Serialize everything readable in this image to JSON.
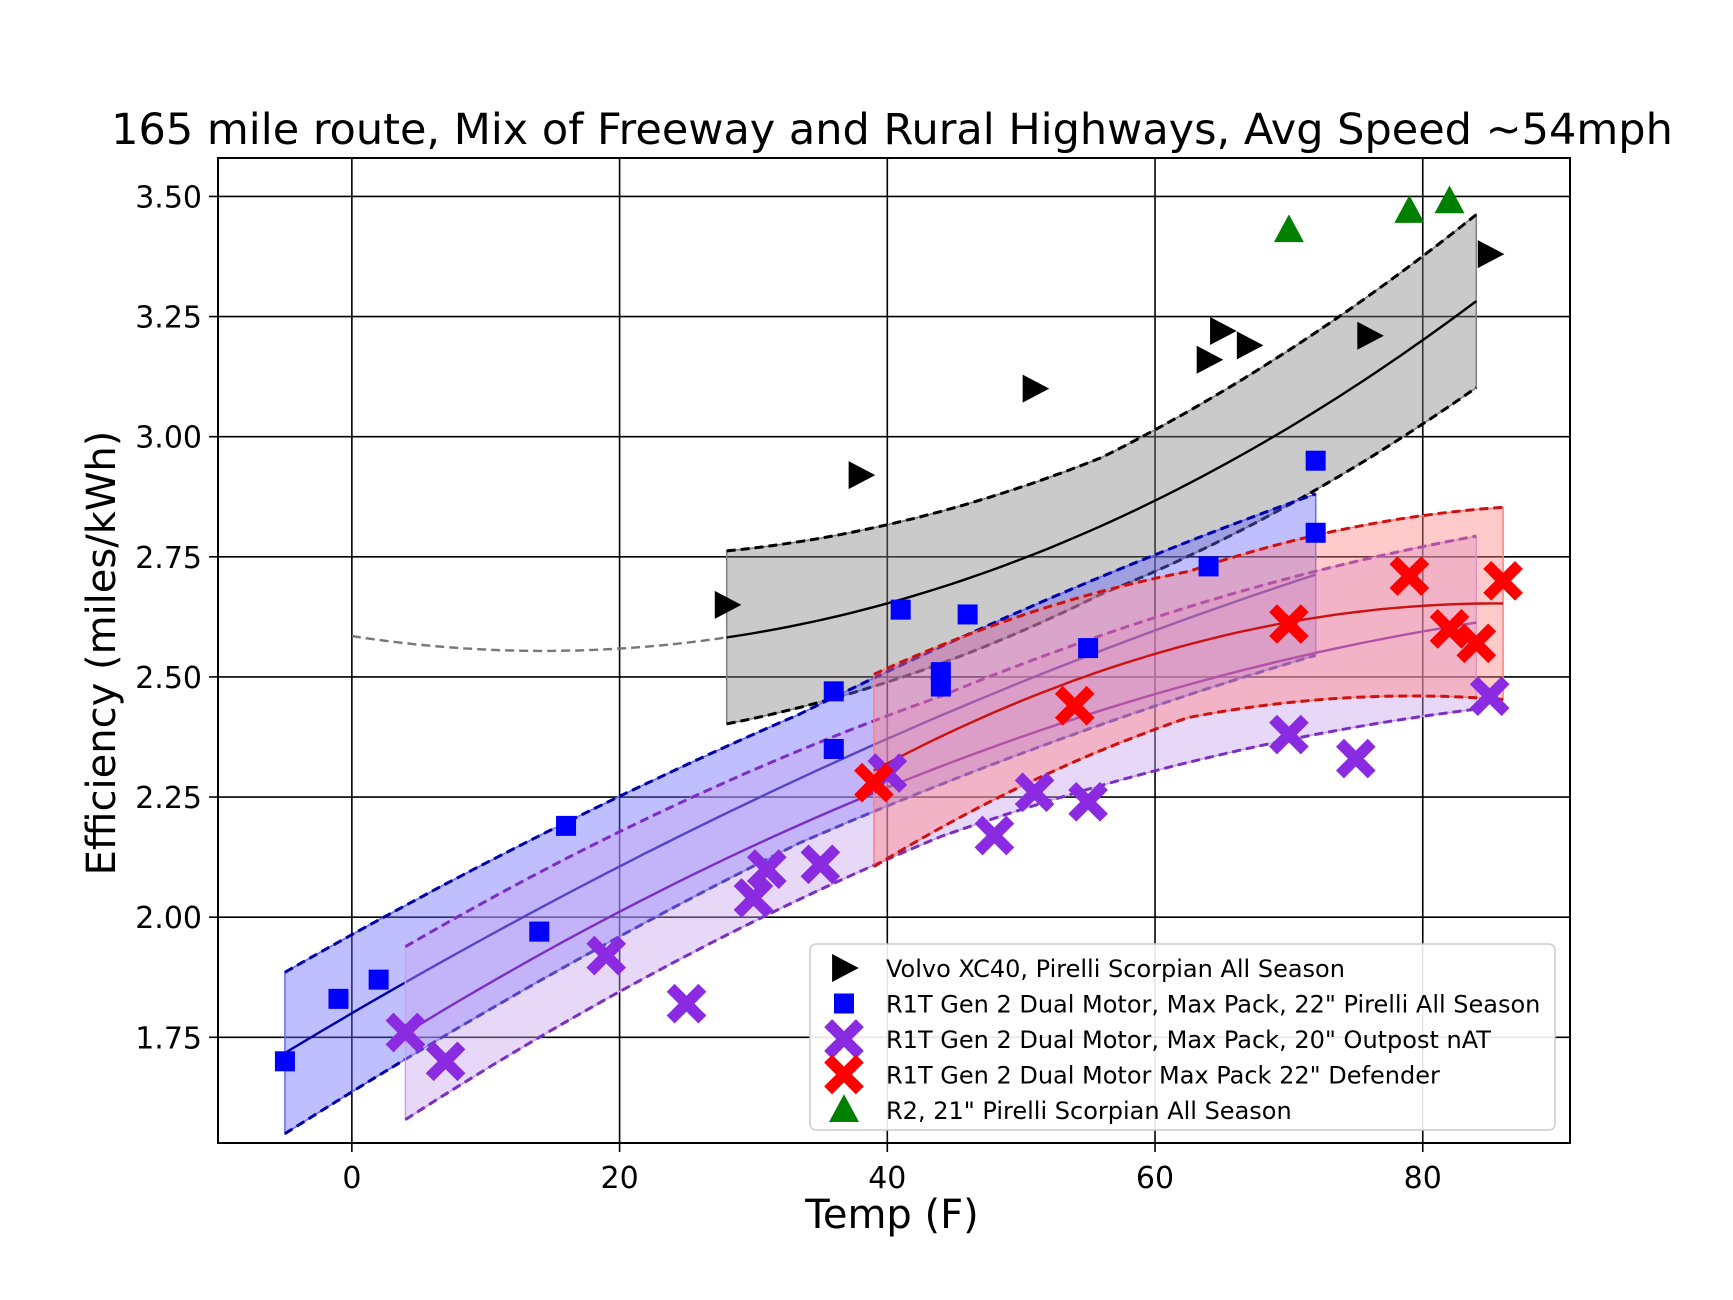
{
  "chart_data": {
    "type": "scatter",
    "title": "165 mile route, Mix of Freeway and Rural Highways, Avg Speed ~54mph",
    "xlabel": "Temp (F)",
    "ylabel": "Efficiency (miles/kWh)",
    "xlim": [
      -10,
      91
    ],
    "ylim": [
      1.53,
      3.58
    ],
    "xticks": [
      0,
      20,
      40,
      60,
      80
    ],
    "yticks": [
      1.75,
      2.0,
      2.25,
      2.5,
      2.75,
      3.0,
      3.25,
      3.5
    ],
    "xtick_labels": [
      "0",
      "20",
      "40",
      "60",
      "80"
    ],
    "ytick_labels": [
      "1.75",
      "2.00",
      "2.25",
      "2.50",
      "2.75",
      "3.00",
      "3.25",
      "3.50"
    ],
    "grid": true,
    "legend_position": "lower-right",
    "series": [
      {
        "name": "Volvo XC40, Pirelli Scorpian All Season",
        "marker": "triangle-right",
        "color": "#000000",
        "fill_color": "#808080",
        "points": [
          [
            28,
            2.65
          ],
          [
            38,
            2.92
          ],
          [
            51,
            3.1
          ],
          [
            64,
            3.16
          ],
          [
            65,
            3.22
          ],
          [
            67,
            3.19
          ],
          [
            76,
            3.21
          ],
          [
            85,
            3.38
          ]
        ],
        "fit": {
          "x_range": [
            28,
            84
          ],
          "quad": [
            0.00015,
            -0.0043,
            2.585
          ],
          "band": [
            0.095,
            0.085
          ]
        },
        "extrapolation": {
          "x_range": [
            0,
            28
          ],
          "color": "#777777"
        }
      },
      {
        "name": "R1T Gen 2 Dual Motor, Max Pack, 22\" Pirelli All Season",
        "marker": "square",
        "color": "#0000ff",
        "line_color": "#0000aa",
        "fill_color": "#6666ff",
        "points": [
          [
            -5,
            1.7
          ],
          [
            -1,
            1.83
          ],
          [
            2,
            1.87
          ],
          [
            14,
            1.97
          ],
          [
            16,
            2.19
          ],
          [
            36,
            2.47
          ],
          [
            36,
            2.35
          ],
          [
            41,
            2.64
          ],
          [
            44,
            2.51
          ],
          [
            44,
            2.48
          ],
          [
            46,
            2.63
          ],
          [
            55,
            2.56
          ],
          [
            64,
            2.73
          ],
          [
            72,
            2.95
          ],
          [
            72,
            2.8
          ]
        ],
        "fit": {
          "x_range": [
            -5,
            72
          ],
          "quad": [
            -5e-05,
            0.01628,
            1.8
          ],
          "band": [
            0.085,
            0.083
          ]
        }
      },
      {
        "name": "R1T Gen 2 Dual Motor, Max Pack, 20\" Outpost nAT",
        "marker": "x",
        "color": "#8a2be2",
        "line_color": "#7b2fc0",
        "fill_color": "#c9a2ef",
        "points": [
          [
            4,
            1.76
          ],
          [
            7,
            1.7
          ],
          [
            19,
            1.92
          ],
          [
            25,
            1.82
          ],
          [
            30,
            2.04
          ],
          [
            31,
            2.1
          ],
          [
            35,
            2.11
          ],
          [
            40,
            2.3
          ],
          [
            48,
            2.17
          ],
          [
            51,
            2.26
          ],
          [
            55,
            2.24
          ],
          [
            70,
            2.38
          ],
          [
            75,
            2.33
          ],
          [
            85,
            2.46
          ]
        ],
        "fit": {
          "x_range": [
            4,
            84
          ],
          "quad": [
            -8e-05,
            0.01772,
            1.689
          ],
          "band": [
            0.085,
            0.095
          ]
        }
      },
      {
        "name": "R1T Gen 2 Dual Motor Max Pack 22\" Defender",
        "marker": "x",
        "color": "#ff0000",
        "line_color": "#cc1111",
        "fill_color": "#ff8080",
        "points": [
          [
            39,
            2.28
          ],
          [
            54,
            2.44
          ],
          [
            70,
            2.61
          ],
          [
            79,
            2.71
          ],
          [
            82,
            2.6
          ],
          [
            84,
            2.57
          ],
          [
            86,
            2.7
          ]
        ],
        "fit": {
          "x_range": [
            39,
            86
          ],
          "quad": [
            -0.00016,
            0.0274,
            1.48
          ],
          "band": [
            0.12,
            0.08
          ]
        }
      },
      {
        "name": "R2, 21\" Pirelli Scorpian All Season",
        "marker": "triangle-up",
        "color": "#008000",
        "points": [
          [
            70,
            3.43
          ],
          [
            79,
            3.47
          ],
          [
            82,
            3.49
          ]
        ]
      }
    ]
  }
}
